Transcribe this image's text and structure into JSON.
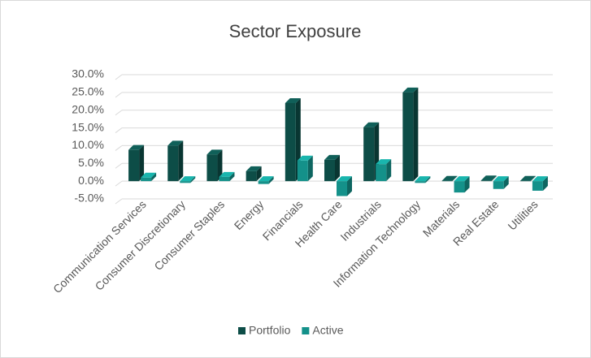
{
  "chart_data": {
    "type": "bar3d",
    "title": "Sector Exposure",
    "categories": [
      "Communication Services",
      "Consumer Discretionary",
      "Consumer Staples",
      "Energy",
      "Financials",
      "Health Care",
      "Industrials",
      "Information Technology",
      "Materials",
      "Real Estate",
      "Utilities"
    ],
    "series": [
      {
        "name": "Portfolio",
        "color": "#0d4d47",
        "values": [
          8.8,
          10.0,
          7.5,
          2.8,
          22.0,
          6.0,
          15.2,
          25.0,
          0.1,
          0.2,
          0.1
        ]
      },
      {
        "name": "Active",
        "color": "#14918a",
        "values": [
          1.0,
          -0.5,
          1.2,
          -0.8,
          5.8,
          -4.2,
          4.8,
          -0.5,
          -3.2,
          -2.2,
          -2.7
        ]
      }
    ],
    "ylim": [
      -5,
      30
    ],
    "yticks": [
      {
        "value": -5,
        "label": "-5.0%"
      },
      {
        "value": 0,
        "label": "0.0%"
      },
      {
        "value": 5,
        "label": "5.0%"
      },
      {
        "value": 10,
        "label": "10.0%"
      },
      {
        "value": 15,
        "label": "15.0%"
      },
      {
        "value": 20,
        "label": "20.0%"
      },
      {
        "value": 25,
        "label": "25.0%"
      },
      {
        "value": 30,
        "label": "30.0%"
      }
    ],
    "grid": true,
    "legend": "bottom"
  }
}
